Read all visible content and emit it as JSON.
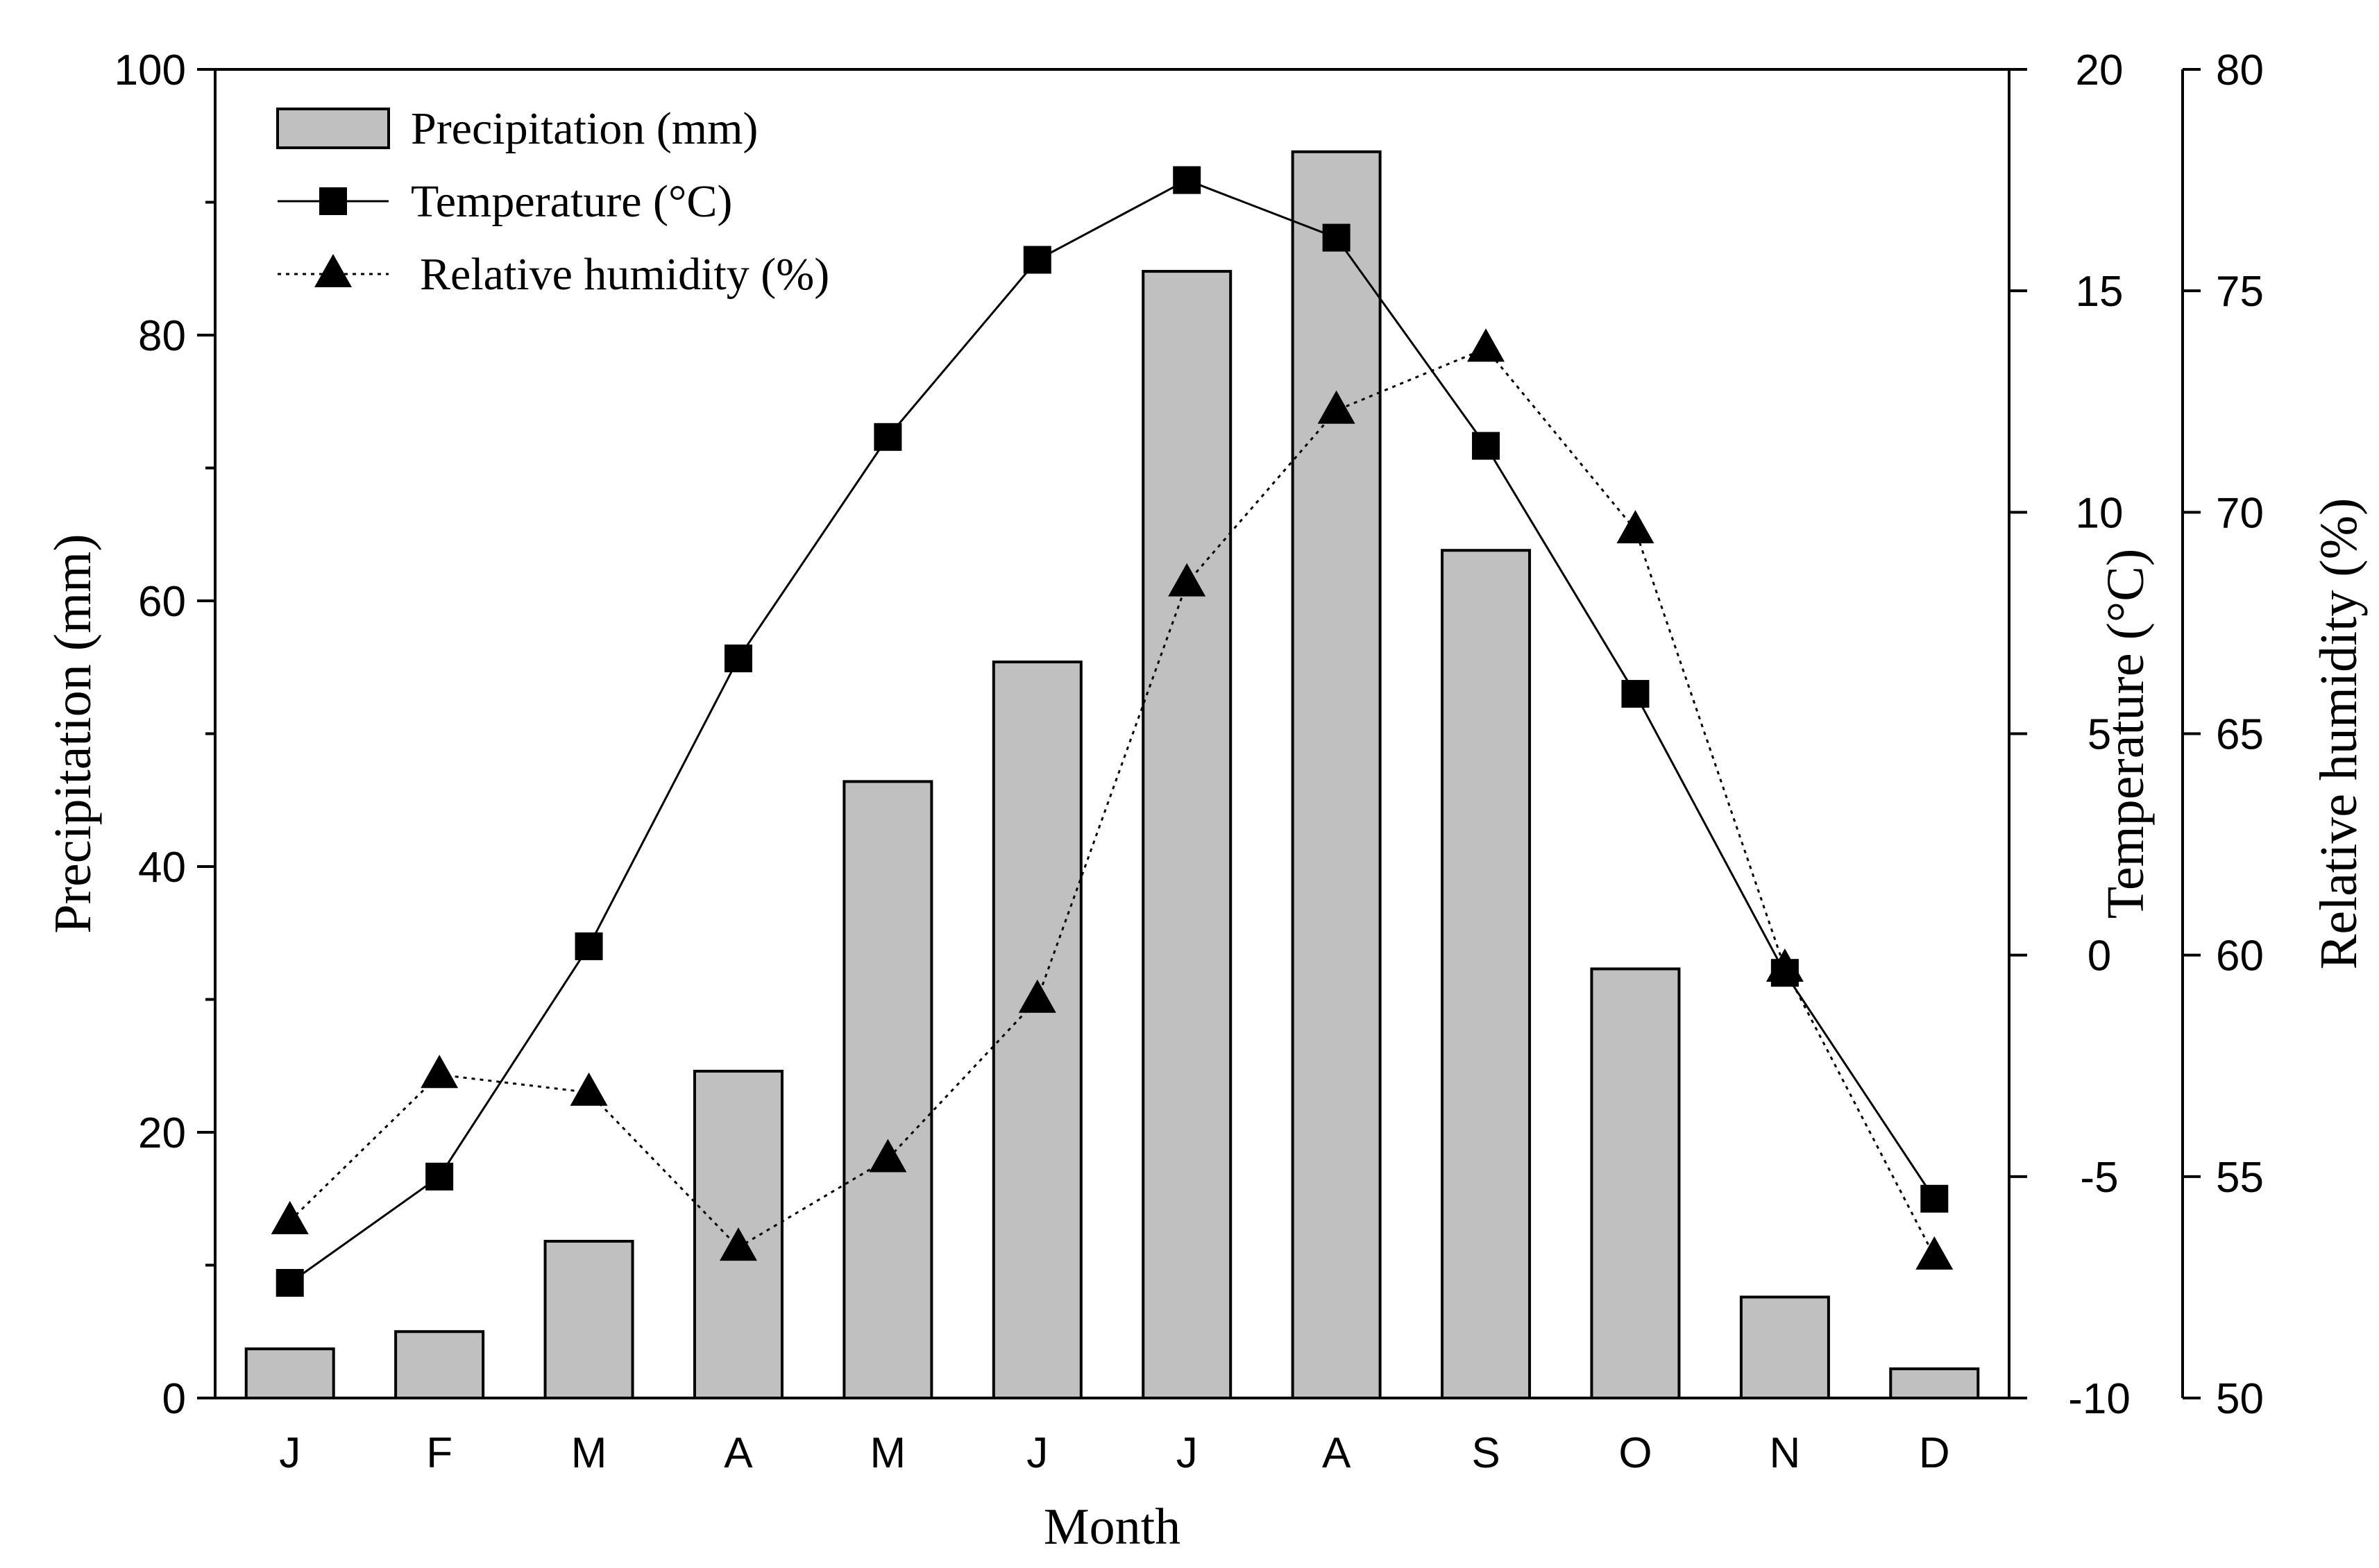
{
  "chart_data": {
    "type": "bar",
    "categories": [
      "J",
      "F",
      "M",
      "A",
      "M",
      "J",
      "J",
      "A",
      "S",
      "O",
      "N",
      "D"
    ],
    "xlabel": "Month",
    "series": [
      {
        "name": "Precipitation (mm)",
        "type": "bar",
        "axis": "left",
        "values": [
          3.7,
          5.0,
          11.8,
          24.6,
          46.4,
          55.4,
          84.8,
          93.8,
          63.8,
          32.3,
          7.6,
          2.2
        ]
      },
      {
        "name": "Temperature (°C)",
        "type": "line",
        "marker": "square",
        "line_style": "solid",
        "axis": "right1",
        "values": [
          -7.4,
          -5.0,
          0.2,
          6.7,
          11.7,
          15.7,
          17.5,
          16.2,
          11.5,
          5.9,
          -0.4,
          -5.5
        ]
      },
      {
        "name": "Relative humidity (%)",
        "type": "line",
        "marker": "triangle",
        "line_style": "dotted",
        "axis": "right2",
        "values": [
          54.0,
          57.3,
          56.9,
          53.4,
          55.4,
          59.0,
          68.4,
          72.3,
          73.7,
          69.6,
          59.7,
          53.2
        ]
      }
    ],
    "axes": {
      "left": {
        "label": "Precipitation (mm)",
        "range": [
          0,
          100
        ],
        "ticks": [
          0,
          20,
          40,
          60,
          80,
          100
        ],
        "tick_labels": [
          "0",
          "20",
          "40",
          "60",
          "80",
          "100"
        ],
        "minor_ticks": [
          10,
          30,
          50,
          70,
          90
        ]
      },
      "right1": {
        "label": "Temperature (°C)",
        "range": [
          -10,
          20
        ],
        "ticks": [
          -10,
          -5,
          0,
          5,
          10,
          15,
          20
        ],
        "tick_labels": [
          "-10",
          "-5",
          "0",
          "5",
          "10",
          "15",
          "20"
        ]
      },
      "right2": {
        "label": "Relative humidity (%)",
        "range": [
          50,
          80
        ],
        "ticks": [
          50,
          55,
          60,
          65,
          70,
          75,
          80
        ],
        "tick_labels": [
          "50",
          "55",
          "60",
          "65",
          "70",
          "75",
          "80"
        ]
      }
    },
    "legend": {
      "position": "top-left",
      "entries": [
        "Precipitation (mm)",
        "Temperature (°C)",
        "Relative humidity (%)"
      ]
    },
    "grid": false,
    "colors": {
      "bar_fill": "#c0c0c0",
      "line": "#000000",
      "marker": "#000000",
      "background": "#ffffff"
    }
  }
}
